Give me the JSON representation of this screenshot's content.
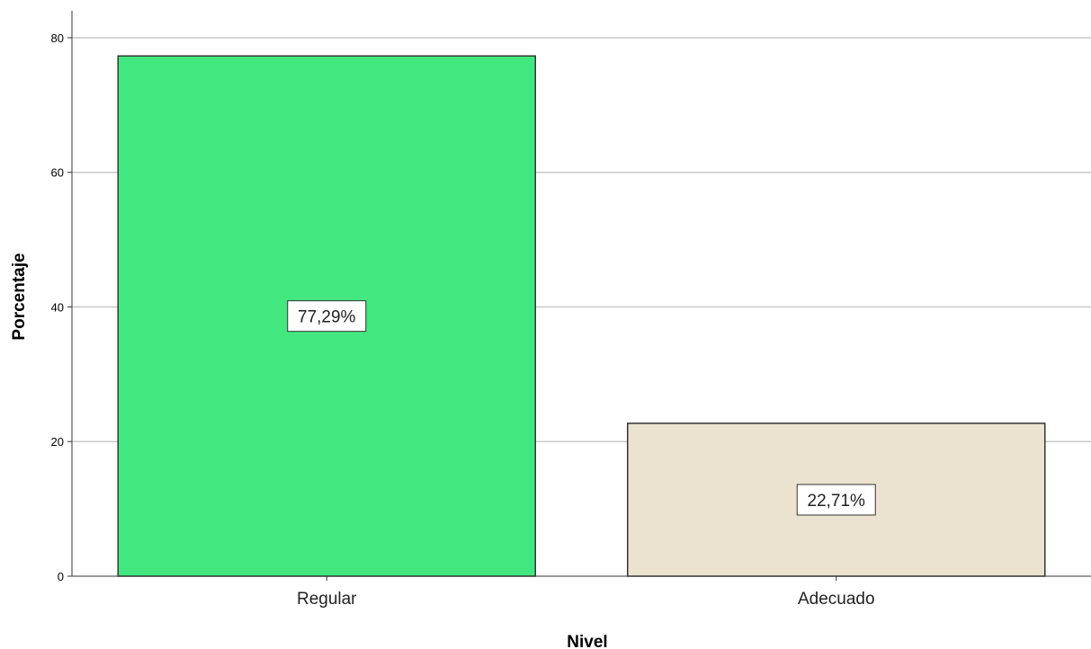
{
  "chart_data": {
    "type": "bar",
    "categories": [
      "Regular",
      "Adecuado"
    ],
    "values": [
      77.29,
      22.71
    ],
    "data_labels": [
      "77,29%",
      "22,71%"
    ],
    "bar_colors": [
      "#42e87f",
      "#ebe3cf"
    ],
    "bar_stroke": "#333333",
    "title": "",
    "xlabel": "Nivel",
    "ylabel": "Porcentaje",
    "ylim": [
      0,
      84
    ],
    "yticks": [
      0,
      20,
      40,
      60,
      80
    ],
    "ytick_labels": [
      "0",
      "20",
      "40",
      "60",
      "80"
    ],
    "grid": true,
    "grid_color": "#c8c8c8",
    "legend": "none"
  }
}
